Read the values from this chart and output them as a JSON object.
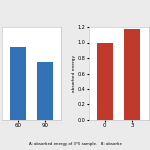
{
  "panel_A": {
    "categories": [
      "60",
      "90"
    ],
    "values": [
      0.78,
      0.62
    ],
    "bar_color": "#3472b8",
    "ylim": [
      0,
      1.0
    ],
    "xlim": [
      -0.6,
      1.6
    ],
    "yticks": []
  },
  "panel_B": {
    "categories": [
      "0",
      "3"
    ],
    "values": [
      1.0,
      1.18
    ],
    "bar_color": "#c0392b",
    "ylabel": "absorbed energy",
    "ylim": [
      0,
      1.2
    ],
    "xlim": [
      -0.6,
      1.6
    ],
    "yticks": [
      0,
      0.2,
      0.4,
      0.6,
      0.8,
      1.0,
      1.2
    ]
  },
  "caption": "A: absorbed energy of 3*5 sample.   B: absorbe",
  "background_color": "#ebebeb",
  "panel_bg": "#ffffff"
}
